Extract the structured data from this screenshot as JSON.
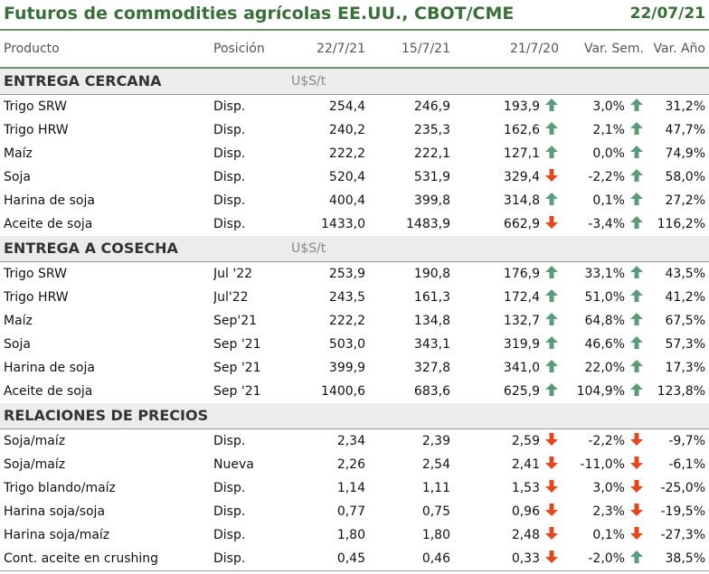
{
  "header": {
    "title": "Futuros de commodities agrícolas EE.UU., CBOT/CME",
    "date": "22/07/21"
  },
  "columns": [
    "Producto",
    "Posición",
    "22/7/21",
    "15/7/21",
    "21/7/20",
    "Var. Sem.",
    "Var. Año"
  ],
  "colors": {
    "title": "#3a6f3a",
    "up_arrow": "#5b9b7a",
    "down_arrow": "#e0491f",
    "section_bg": "#ececec"
  },
  "sections": [
    {
      "label": "ENTREGA CERCANA",
      "unit": "U$S/t",
      "rows": [
        {
          "product": "Trigo SRW",
          "position": "Disp.",
          "v1": "254,4",
          "v2": "246,9",
          "v3": "193,9",
          "var_sem": "3,0%",
          "var_sem_dir": "up",
          "var_ano": "31,2%",
          "var_ano_dir": "up"
        },
        {
          "product": "Trigo HRW",
          "position": "Disp.",
          "v1": "240,2",
          "v2": "235,3",
          "v3": "162,6",
          "var_sem": "2,1%",
          "var_sem_dir": "up",
          "var_ano": "47,7%",
          "var_ano_dir": "up"
        },
        {
          "product": "Maíz",
          "position": "Disp.",
          "v1": "222,2",
          "v2": "222,1",
          "v3": "127,1",
          "var_sem": "0,0%",
          "var_sem_dir": "up",
          "var_ano": "74,9%",
          "var_ano_dir": "up"
        },
        {
          "product": "Soja",
          "position": "Disp.",
          "v1": "520,4",
          "v2": "531,9",
          "v3": "329,4",
          "var_sem": "-2,2%",
          "var_sem_dir": "down",
          "var_ano": "58,0%",
          "var_ano_dir": "up"
        },
        {
          "product": "Harina de soja",
          "position": "Disp.",
          "v1": "400,4",
          "v2": "399,8",
          "v3": "314,8",
          "var_sem": "0,1%",
          "var_sem_dir": "up",
          "var_ano": "27,2%",
          "var_ano_dir": "up"
        },
        {
          "product": "Aceite de soja",
          "position": "Disp.",
          "v1": "1433,0",
          "v2": "1483,9",
          "v3": "662,9",
          "var_sem": "-3,4%",
          "var_sem_dir": "down",
          "var_ano": "116,2%",
          "var_ano_dir": "up"
        }
      ]
    },
    {
      "label": "ENTREGA A COSECHA",
      "unit": "U$S/t",
      "rows": [
        {
          "product": "Trigo SRW",
          "position": "Jul '22",
          "v1": "253,9",
          "v2": "190,8",
          "v3": "176,9",
          "var_sem": "33,1%",
          "var_sem_dir": "up",
          "var_ano": "43,5%",
          "var_ano_dir": "up"
        },
        {
          "product": "Trigo HRW",
          "position": "Jul'22",
          "v1": "243,5",
          "v2": "161,3",
          "v3": "172,4",
          "var_sem": "51,0%",
          "var_sem_dir": "up",
          "var_ano": "41,2%",
          "var_ano_dir": "up"
        },
        {
          "product": "Maíz",
          "position": "Sep'21",
          "v1": "222,2",
          "v2": "134,8",
          "v3": "132,7",
          "var_sem": "64,8%",
          "var_sem_dir": "up",
          "var_ano": "67,5%",
          "var_ano_dir": "up"
        },
        {
          "product": "Soja",
          "position": "Sep '21",
          "v1": "503,0",
          "v2": "343,1",
          "v3": "319,9",
          "var_sem": "46,6%",
          "var_sem_dir": "up",
          "var_ano": "57,3%",
          "var_ano_dir": "up"
        },
        {
          "product": "Harina de soja",
          "position": "Sep '21",
          "v1": "399,9",
          "v2": "327,8",
          "v3": "341,0",
          "var_sem": "22,0%",
          "var_sem_dir": "up",
          "var_ano": "17,3%",
          "var_ano_dir": "up"
        },
        {
          "product": "Aceite de soja",
          "position": "Sep '21",
          "v1": "1400,6",
          "v2": "683,6",
          "v3": "625,9",
          "var_sem": "104,9%",
          "var_sem_dir": "up",
          "var_ano": "123,8%",
          "var_ano_dir": "up"
        }
      ]
    },
    {
      "label": "RELACIONES DE PRECIOS",
      "unit": "",
      "rows": [
        {
          "product": "Soja/maíz",
          "position": "Disp.",
          "v1": "2,34",
          "v2": "2,39",
          "v3": "2,59",
          "var_sem": "-2,2%",
          "var_sem_dir": "down",
          "var_ano": "-9,7%",
          "var_ano_dir": "down"
        },
        {
          "product": "Soja/maíz",
          "position": "Nueva",
          "v1": "2,26",
          "v2": "2,54",
          "v3": "2,41",
          "var_sem": "-11,0%",
          "var_sem_dir": "down",
          "var_ano": "-6,1%",
          "var_ano_dir": "down"
        },
        {
          "product": "Trigo blando/maíz",
          "position": "Disp.",
          "v1": "1,14",
          "v2": "1,11",
          "v3": "1,53",
          "var_sem": "3,0%",
          "var_sem_dir": "down",
          "var_ano": "-25,0%",
          "var_ano_dir": "down"
        },
        {
          "product": "Harina soja/soja",
          "position": "Disp.",
          "v1": "0,77",
          "v2": "0,75",
          "v3": "0,96",
          "var_sem": "2,3%",
          "var_sem_dir": "down",
          "var_ano": "-19,5%",
          "var_ano_dir": "down"
        },
        {
          "product": "Harina soja/maíz",
          "position": "Disp.",
          "v1": "1,80",
          "v2": "1,80",
          "v3": "2,48",
          "var_sem": "0,1%",
          "var_sem_dir": "down",
          "var_ano": "-27,3%",
          "var_ano_dir": "down"
        },
        {
          "product": "Cont. aceite en crushing",
          "position": "Disp.",
          "v1": "0,45",
          "v2": "0,46",
          "v3": "0,33",
          "var_sem": "-2,0%",
          "var_sem_dir": "down",
          "var_ano": "38,5%",
          "var_ano_dir": "up"
        }
      ]
    }
  ]
}
